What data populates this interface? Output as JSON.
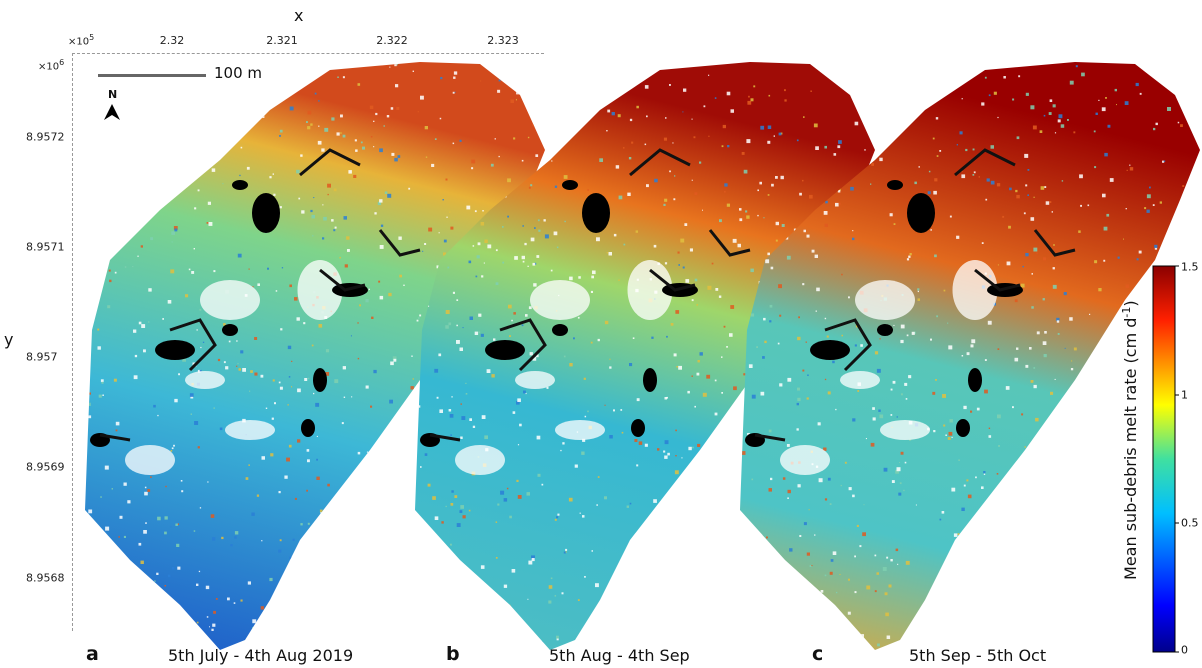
{
  "axes": {
    "x_title": "x",
    "y_title": "y",
    "x_exponent": "×10",
    "x_exponent_power": "5",
    "y_exponent": "×10",
    "y_exponent_power": "6",
    "x_ticks": [
      "2.32",
      "2.321",
      "2.322",
      "2.323"
    ],
    "y_ticks": [
      "8.9572",
      "8.9571",
      "8.957",
      "8.9569",
      "8.9568"
    ]
  },
  "scale_bar": {
    "label": "100 m"
  },
  "north_arrow": {
    "label": "N"
  },
  "panels": [
    {
      "letter": "a",
      "date": "5th July - 4th Aug 2019"
    },
    {
      "letter": "b",
      "date": "5th Aug - 4th Sep"
    },
    {
      "letter": "c",
      "date": "5th Sep - 5th Oct"
    }
  ],
  "colorbar": {
    "label_prefix": "Mean sub-debris melt rate (cm d",
    "label_superscript": "-1",
    "label_suffix": ")",
    "ticks": [
      "1.5",
      "1",
      "0.5",
      "0"
    ],
    "colormap": "jet",
    "range": [
      0,
      1.5
    ]
  },
  "colors": {
    "low": "#00008b",
    "mid": "#35c6c8",
    "high": "#8b0000",
    "hole": "#000000"
  }
}
